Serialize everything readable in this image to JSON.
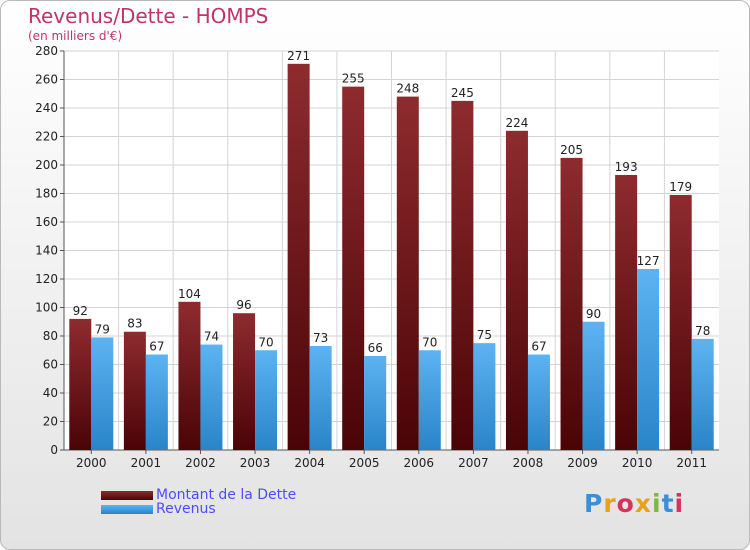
{
  "chart_data": {
    "type": "bar",
    "title": "Revenus/Dette - HOMPS",
    "subtitle": "(en milliers d'€)",
    "categories": [
      "2000",
      "2001",
      "2002",
      "2003",
      "2004",
      "2005",
      "2006",
      "2007",
      "2008",
      "2009",
      "2010",
      "2011"
    ],
    "series": [
      {
        "name": "Montant de la Dette",
        "color": "#7a1518",
        "values": [
          92,
          83,
          104,
          96,
          271,
          255,
          248,
          245,
          224,
          205,
          193,
          179
        ]
      },
      {
        "name": "Revenus",
        "color": "#3c9ee6",
        "values": [
          79,
          67,
          74,
          70,
          73,
          66,
          70,
          75,
          67,
          90,
          127,
          78
        ]
      }
    ],
    "ylim": [
      0,
      280
    ],
    "yticks": [
      0,
      20,
      40,
      60,
      80,
      100,
      120,
      140,
      160,
      180,
      200,
      220,
      240,
      260,
      280
    ],
    "grid": true,
    "legend_position": "bottom-left"
  },
  "logo": {
    "text": "Proxiti",
    "letter_colors": [
      "#3a8fd9",
      "#e8a21a",
      "#d6335a",
      "#e8a21a",
      "#7cb843",
      "#3a8fd9",
      "#d6335a"
    ]
  }
}
